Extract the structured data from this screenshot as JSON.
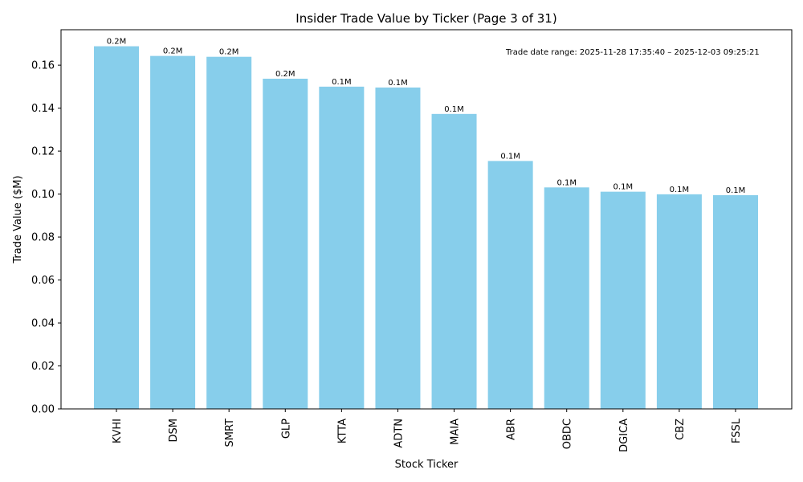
{
  "chart_data": {
    "type": "bar",
    "title": "Insider Trade Value by Ticker (Page 3 of 31)",
    "xlabel": "Stock Ticker",
    "ylabel": "Trade Value ($M)",
    "categories": [
      "KVHI",
      "DSM",
      "SMRT",
      "GLP",
      "KTTA",
      "ADTN",
      "MAIA",
      "ABR",
      "OBDC",
      "DGICA",
      "CBZ",
      "FSSL"
    ],
    "values": [
      0.1688,
      0.1643,
      0.1639,
      0.1537,
      0.15,
      0.1496,
      0.1373,
      0.1154,
      0.1031,
      0.1011,
      0.0999,
      0.0995
    ],
    "data_labels": [
      "0.2M",
      "0.2M",
      "0.2M",
      "0.2M",
      "0.1M",
      "0.1M",
      "0.1M",
      "0.1M",
      "0.1M",
      "0.1M",
      "0.1M",
      "0.1M"
    ],
    "ylim": [
      0,
      0.1765
    ],
    "yticks": [
      0.0,
      0.02,
      0.04,
      0.06,
      0.08,
      0.1,
      0.12,
      0.14,
      0.16
    ],
    "ytick_labels": [
      "0.00",
      "0.02",
      "0.04",
      "0.06",
      "0.08",
      "0.10",
      "0.12",
      "0.14",
      "0.16"
    ],
    "annotation": "Trade date range: 2025-11-28 17:35:40 – 2025-12-03 09:25:21",
    "legend": "none",
    "grid": false,
    "bar_color": "#87CEEB"
  }
}
